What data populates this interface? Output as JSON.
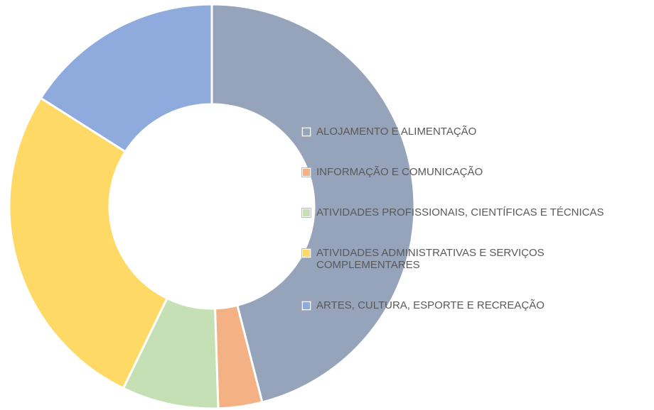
{
  "chart_data": {
    "type": "donut",
    "categories": [
      "ALOJAMENTO E ALIMENTAÇÃO",
      "INFORMAÇÃO E COMUNICAÇÃO",
      "ATIVIDADES PROFISSIONAIS, CIENTÍFICAS E TÉCNICAS",
      "ATIVIDADES ADMINISTRATIVAS E SERVIÇOS COMPLEMENTARES",
      "ARTES, CULTURA, ESPORTE E RECREAÇÃO"
    ],
    "values": [
      46,
      3.5,
      7.7,
      26.8,
      16
    ],
    "colors": [
      "#95a4ba",
      "#f4b183",
      "#c5e0b4",
      "#ffd966",
      "#8faadc"
    ],
    "legend": "right"
  }
}
